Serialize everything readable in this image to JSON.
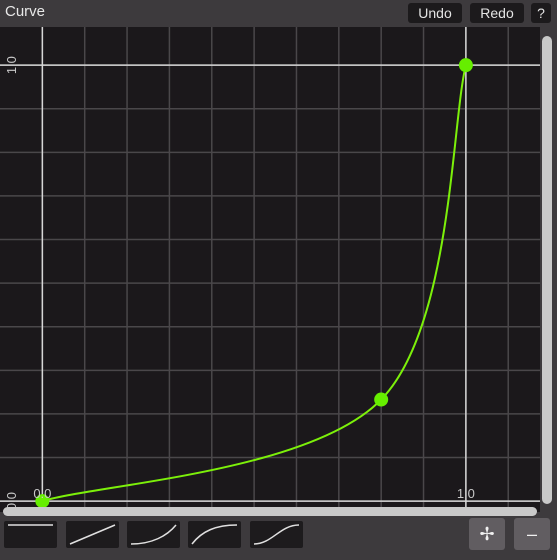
{
  "header": {
    "title": "Curve",
    "undo_label": "Undo",
    "redo_label": "Redo",
    "help_label": "?"
  },
  "graph": {
    "grid_minor_color": "#4a474a",
    "grid_major_color": "#d7d7d7",
    "curve_color": "#7cf00a",
    "point_color": "#66ee00",
    "x_tick_labels": [
      "0.0",
      "1.0"
    ],
    "y_tick_labels": [
      "0.0",
      "1.0"
    ]
  },
  "chart_data": {
    "type": "line",
    "control_points": [
      {
        "x": 0.0,
        "y": 0.0
      },
      {
        "x": 0.8,
        "y": 0.233
      },
      {
        "x": 1.0,
        "y": 1.0
      }
    ],
    "xlim": [
      -0.1,
      1.175
    ],
    "ylim": [
      -0.025,
      1.0875
    ],
    "xtick_labels": [
      "0.0",
      "1.0"
    ],
    "ytick_labels": [
      "0.0",
      "1.0"
    ],
    "grid": true
  },
  "presets": [
    {
      "name": "flat",
      "icon": "preset-flat-icon"
    },
    {
      "name": "linear",
      "icon": "preset-linear-icon"
    },
    {
      "name": "ease-in",
      "icon": "preset-ease-in-icon"
    },
    {
      "name": "ease-out",
      "icon": "preset-ease-out-icon"
    },
    {
      "name": "ease-in-out",
      "icon": "preset-ease-in-out-icon"
    }
  ],
  "controls": {
    "add_symbol": "✢",
    "remove_symbol": "–"
  }
}
